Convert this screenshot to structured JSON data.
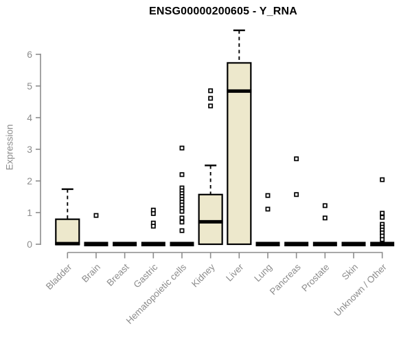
{
  "title": "ENSG00000200605 - Y_RNA",
  "colors": {
    "box_fill": "#EDE8CC",
    "box_stroke": "#000000",
    "median": "#000000",
    "whisker": "#000000",
    "outlier_stroke": "#000000",
    "outlier_fill": "#FFFFFF",
    "axis": "#8C8C8C",
    "tick_label": "#8C8C8C",
    "title_color": "#000000",
    "background": "#FFFFFF"
  },
  "chart_data": {
    "type": "boxplot",
    "title": "ENSG00000200605 - Y_RNA",
    "xlabel": "",
    "ylabel": "Expression",
    "ylim": [
      0,
      6.9
    ],
    "yticks": [
      0,
      1,
      2,
      3,
      4,
      5,
      6
    ],
    "grid": false,
    "legend": "none",
    "categories": [
      "Bladder",
      "Brain",
      "Breast",
      "Gastric",
      "Hematopoietic cells",
      "Kidney",
      "Liver",
      "Lung",
      "Pancreas",
      "Prostate",
      "Skin",
      "Unknown / Other"
    ],
    "boxes": [
      {
        "label": "Bladder",
        "q1": 0,
        "median": 0.02,
        "q3": 0.79,
        "whisker_low": 0,
        "whisker_high": 1.74,
        "outliers": []
      },
      {
        "label": "Brain",
        "q1": 0,
        "median": 0,
        "q3": 0,
        "whisker_low": 0,
        "whisker_high": 0,
        "outliers": [
          0.91
        ]
      },
      {
        "label": "Breast",
        "q1": 0,
        "median": 0,
        "q3": 0,
        "whisker_low": 0,
        "whisker_high": 0,
        "outliers": []
      },
      {
        "label": "Gastric",
        "q1": 0,
        "median": 0,
        "q3": 0,
        "whisker_low": 0,
        "whisker_high": 0,
        "outliers": [
          1.08,
          0.97,
          0.67,
          0.57
        ]
      },
      {
        "label": "Hematopoietic cells",
        "q1": 0,
        "median": 0,
        "q3": 0,
        "whisker_low": 0,
        "whisker_high": 0,
        "outliers": [
          3.04,
          2.2,
          1.78,
          1.69,
          1.6,
          1.51,
          1.42,
          1.33,
          1.24,
          1.13,
          1.04,
          0.83,
          0.7,
          0.43
        ]
      },
      {
        "label": "Kidney",
        "q1": 0,
        "median": 0.71,
        "q3": 1.57,
        "whisker_low": 0,
        "whisker_high": 2.49,
        "outliers": [
          4.85,
          4.61,
          4.37
        ]
      },
      {
        "label": "Liver",
        "q1": 0,
        "median": 4.84,
        "q3": 5.73,
        "whisker_low": 0,
        "whisker_high": 6.76,
        "outliers": []
      },
      {
        "label": "Lung",
        "q1": 0,
        "median": 0,
        "q3": 0,
        "whisker_low": 0,
        "whisker_high": 0,
        "outliers": [
          1.54,
          1.11
        ]
      },
      {
        "label": "Pancreas",
        "q1": 0,
        "median": 0,
        "q3": 0,
        "whisker_low": 0,
        "whisker_high": 0,
        "outliers": [
          2.7,
          1.57
        ]
      },
      {
        "label": "Prostate",
        "q1": 0,
        "median": 0,
        "q3": 0,
        "whisker_low": 0,
        "whisker_high": 0,
        "outliers": [
          1.22,
          0.83
        ]
      },
      {
        "label": "Skin",
        "q1": 0,
        "median": 0,
        "q3": 0,
        "whisker_low": 0,
        "whisker_high": 0,
        "outliers": []
      },
      {
        "label": "Unknown / Other",
        "q1": 0,
        "median": 0,
        "q3": 0,
        "whisker_low": 0,
        "whisker_high": 0,
        "outliers": [
          2.04,
          0.98,
          0.85,
          0.63,
          0.54,
          0.45,
          0.36,
          0.26,
          0.15
        ]
      }
    ]
  }
}
